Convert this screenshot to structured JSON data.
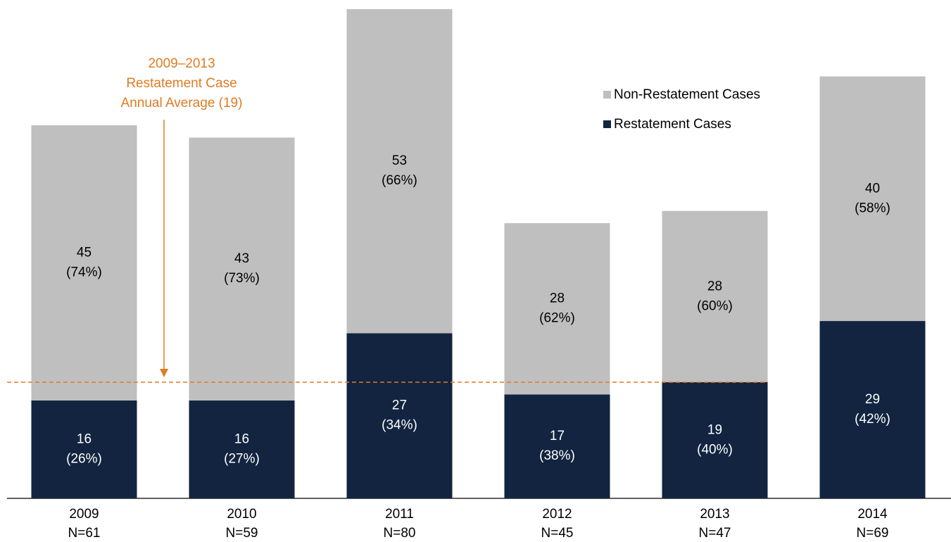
{
  "chart_data": {
    "type": "stacked_bar",
    "categories": [
      "2009",
      "2010",
      "2011",
      "2012",
      "2013",
      "2014"
    ],
    "category_sublabels": [
      "N=61",
      "N=59",
      "N=80",
      "N=45",
      "N=47",
      "N=69"
    ],
    "series": [
      {
        "name": "Restatement Cases",
        "color": "#12243f",
        "label_color": "#ffffff",
        "values": [
          16,
          16,
          27,
          17,
          19,
          29
        ],
        "percent_labels": [
          "(26%)",
          "(27%)",
          "(34%)",
          "(38%)",
          "(40%)",
          "(42%)"
        ]
      },
      {
        "name": "Non-Restatement Cases",
        "color": "#bfbfbf",
        "label_color": "#000000",
        "values": [
          45,
          43,
          53,
          28,
          28,
          40
        ],
        "percent_labels": [
          "(74%)",
          "(73%)",
          "(66%)",
          "(62%)",
          "(60%)",
          "(58%)"
        ]
      }
    ],
    "ylim": [
      0,
      80
    ],
    "reference_line": {
      "value": 19,
      "color": "#e07b24",
      "label": [
        "2009–2013",
        "Restatement Case",
        "Annual Average (19)"
      ]
    }
  }
}
